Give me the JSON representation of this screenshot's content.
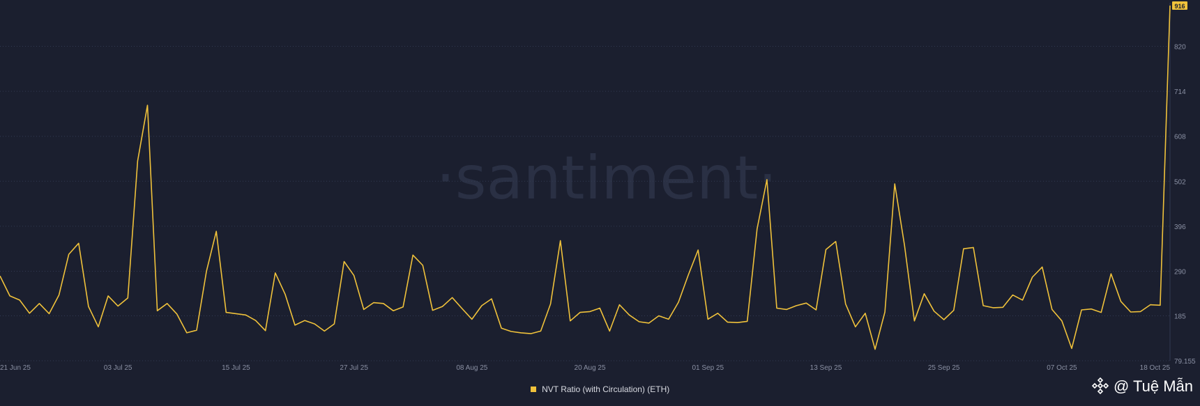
{
  "watermark": "·santiment·",
  "credit": "@ Tuệ Mẫn",
  "colors": {
    "background": "#1b1f2f",
    "series": "#f0c23b",
    "grid": "#323a52",
    "tick": "#8a90a3",
    "badge_text": "#1b1f2f"
  },
  "chart_data": {
    "type": "line",
    "title": "",
    "xlabel": "",
    "ylabel": "",
    "x_ticks": [
      "21 Jun 25",
      "03 Jul 25",
      "15 Jul 25",
      "27 Jul 25",
      "08 Aug 25",
      "20 Aug 25",
      "01 Sep 25",
      "13 Sep 25",
      "25 Sep 25",
      "07 Oct 25",
      "18 Oct 25"
    ],
    "y_ticks": [
      "79.155",
      "185",
      "290",
      "396",
      "502",
      "608",
      "714",
      "820"
    ],
    "ylim": [
      79.155,
      916
    ],
    "last_value_label": "916",
    "legend_position": "bottom-center",
    "grid": true,
    "series": [
      {
        "name": "NVT Ratio (with Circulation) (ETH)",
        "dates": [
          "2025-06-21",
          "2025-06-22",
          "2025-06-23",
          "2025-06-24",
          "2025-06-25",
          "2025-06-26",
          "2025-06-27",
          "2025-06-28",
          "2025-06-29",
          "2025-06-30",
          "2025-07-01",
          "2025-07-02",
          "2025-07-03",
          "2025-07-04",
          "2025-07-05",
          "2025-07-06",
          "2025-07-07",
          "2025-07-08",
          "2025-07-09",
          "2025-07-10",
          "2025-07-11",
          "2025-07-12",
          "2025-07-13",
          "2025-07-14",
          "2025-07-15",
          "2025-07-16",
          "2025-07-17",
          "2025-07-18",
          "2025-07-19",
          "2025-07-20",
          "2025-07-21",
          "2025-07-22",
          "2025-07-23",
          "2025-07-24",
          "2025-07-25",
          "2025-07-26",
          "2025-07-27",
          "2025-07-28",
          "2025-07-29",
          "2025-07-30",
          "2025-07-31",
          "2025-08-01",
          "2025-08-02",
          "2025-08-03",
          "2025-08-04",
          "2025-08-05",
          "2025-08-06",
          "2025-08-07",
          "2025-08-08",
          "2025-08-09",
          "2025-08-10",
          "2025-08-11",
          "2025-08-12",
          "2025-08-13",
          "2025-08-14",
          "2025-08-15",
          "2025-08-16",
          "2025-08-17",
          "2025-08-18",
          "2025-08-19",
          "2025-08-20",
          "2025-08-21",
          "2025-08-22",
          "2025-08-23",
          "2025-08-24",
          "2025-08-25",
          "2025-08-26",
          "2025-08-27",
          "2025-08-28",
          "2025-08-29",
          "2025-08-30",
          "2025-08-31",
          "2025-09-01",
          "2025-09-02",
          "2025-09-03",
          "2025-09-04",
          "2025-09-05",
          "2025-09-06",
          "2025-09-07",
          "2025-09-08",
          "2025-09-09",
          "2025-09-10",
          "2025-09-11",
          "2025-09-12",
          "2025-09-13",
          "2025-09-14",
          "2025-09-15",
          "2025-09-16",
          "2025-09-17",
          "2025-09-18",
          "2025-09-19",
          "2025-09-20",
          "2025-09-21",
          "2025-09-22",
          "2025-09-23",
          "2025-09-24",
          "2025-09-25",
          "2025-09-26",
          "2025-09-27",
          "2025-09-28",
          "2025-09-29",
          "2025-09-30",
          "2025-10-01",
          "2025-10-02",
          "2025-10-03",
          "2025-10-04",
          "2025-10-05",
          "2025-10-06",
          "2025-10-07",
          "2025-10-08",
          "2025-10-09",
          "2025-10-10",
          "2025-10-11",
          "2025-10-12",
          "2025-10-13",
          "2025-10-14",
          "2025-10-15",
          "2025-10-16",
          "2025-10-17",
          "2025-10-18"
        ],
        "values": [
          279,
          232,
          222,
          191,
          214,
          190,
          234,
          330,
          356,
          207,
          159,
          232,
          208,
          227,
          550,
          681,
          197,
          214,
          189,
          145,
          151,
          290,
          384,
          193,
          190,
          187,
          174,
          150,
          286,
          236,
          163,
          174,
          166,
          149,
          166,
          313,
          280,
          200,
          216,
          214,
          197,
          206,
          328,
          304,
          198,
          207,
          228,
          202,
          177,
          209,
          225,
          156,
          148,
          145,
          143,
          149,
          213,
          362,
          173,
          193,
          195,
          203,
          149,
          211,
          187,
          171,
          168,
          185,
          177,
          217,
          281,
          340,
          177,
          191,
          170,
          169,
          172,
          390,
          506,
          203,
          200,
          209,
          215,
          199,
          341,
          360,
          213,
          159,
          191,
          106,
          194,
          496,
          350,
          173,
          237,
          196,
          176,
          198,
          343,
          346,
          209,
          204,
          205,
          234,
          222,
          276,
          300,
          200,
          173,
          108,
          199,
          201,
          193,
          284,
          219,
          194,
          195,
          211,
          210,
          916
        ]
      }
    ]
  }
}
